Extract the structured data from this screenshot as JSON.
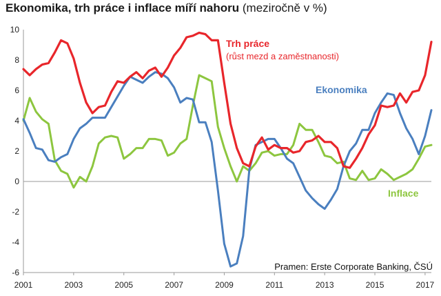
{
  "chart_data": {
    "type": "line",
    "title_bold": "Ekonomika, trh práce i inflace míří nahoru",
    "title_normal": "(meziročně v %)",
    "source": "Pramen: Erste Corporate Banking, ČSÚ",
    "x_tick_labels": [
      "2001",
      "2003",
      "2005",
      "2007",
      "2009",
      "2011",
      "2013",
      "2015",
      "2017"
    ],
    "y_tick_labels": [
      "10",
      "8",
      "6",
      "4",
      "2",
      "0",
      "-2",
      "-4",
      "-6"
    ],
    "ylim": [
      -6,
      10
    ],
    "xlim": [
      2001.0,
      2017.25
    ],
    "series": [
      {
        "name": "Trh práce",
        "name_sub": "(růst mezd a zaměstnanosti)",
        "color": "#e8262b",
        "x": [
          2001,
          2001.25,
          2001.5,
          2001.75,
          2002,
          2002.25,
          2002.5,
          2002.75,
          2003,
          2003.25,
          2003.5,
          2003.75,
          2004,
          2004.25,
          2004.5,
          2004.75,
          2005,
          2005.25,
          2005.5,
          2005.75,
          2006,
          2006.25,
          2006.5,
          2006.75,
          2007,
          2007.25,
          2007.5,
          2007.75,
          2008,
          2008.25,
          2008.5,
          2008.75,
          2009,
          2009.25,
          2009.5,
          2009.75,
          2010,
          2010.25,
          2010.5,
          2010.75,
          2011,
          2011.25,
          2011.5,
          2011.75,
          2012,
          2012.25,
          2012.5,
          2012.75,
          2013,
          2013.25,
          2013.5,
          2013.75,
          2014,
          2014.25,
          2014.5,
          2014.75,
          2015,
          2015.25,
          2015.5,
          2015.75,
          2016,
          2016.25,
          2016.5,
          2016.75,
          2017,
          2017.25
        ],
        "values": [
          7.4,
          7.0,
          7.4,
          7.7,
          7.8,
          8.5,
          9.3,
          9.1,
          8.1,
          6.5,
          5.2,
          4.5,
          4.9,
          5.0,
          5.9,
          6.6,
          6.5,
          6.9,
          7.2,
          6.8,
          7.3,
          7.5,
          6.9,
          7.5,
          8.3,
          8.8,
          9.5,
          9.6,
          9.8,
          9.7,
          9.3,
          9.3,
          6.5,
          3.8,
          2.2,
          1.2,
          1.0,
          2.3,
          2.9,
          2.1,
          2.4,
          2.2,
          2.2,
          1.9,
          2.0,
          2.6,
          2.7,
          3.0,
          2.6,
          2.6,
          2.2,
          1.0,
          0.9,
          1.5,
          2.2,
          3.1,
          3.7,
          5.0,
          4.9,
          5.0,
          5.8,
          5.2,
          5.9,
          6.0,
          7.0,
          9.2
        ]
      },
      {
        "name": "Ekonomika",
        "color": "#4a7fbf",
        "x": [
          2001,
          2001.25,
          2001.5,
          2001.75,
          2002,
          2002.25,
          2002.5,
          2002.75,
          2003,
          2003.25,
          2003.5,
          2003.75,
          2004,
          2004.25,
          2004.5,
          2004.75,
          2005,
          2005.25,
          2005.5,
          2005.75,
          2006,
          2006.25,
          2006.5,
          2006.75,
          2007,
          2007.25,
          2007.5,
          2007.75,
          2008,
          2008.25,
          2008.5,
          2008.75,
          2009,
          2009.25,
          2009.5,
          2009.75,
          2010,
          2010.25,
          2010.5,
          2010.75,
          2011,
          2011.25,
          2011.5,
          2011.75,
          2012,
          2012.25,
          2012.5,
          2012.75,
          2013,
          2013.25,
          2013.5,
          2013.75,
          2014,
          2014.25,
          2014.5,
          2014.75,
          2015,
          2015.25,
          2015.5,
          2015.75,
          2016,
          2016.25,
          2016.5,
          2016.75,
          2017,
          2017.25
        ],
        "values": [
          4.1,
          3.2,
          2.2,
          2.1,
          1.4,
          1.3,
          1.6,
          1.8,
          2.8,
          3.5,
          3.8,
          4.2,
          4.2,
          4.2,
          4.9,
          5.6,
          6.3,
          6.9,
          6.7,
          6.5,
          6.9,
          7.2,
          7.1,
          6.8,
          6.2,
          5.2,
          5.5,
          5.4,
          3.9,
          3.9,
          2.6,
          -0.6,
          -4.1,
          -5.6,
          -5.4,
          -3.6,
          0.8,
          2.4,
          2.6,
          2.8,
          2.8,
          2.2,
          1.5,
          1.2,
          0.3,
          -0.6,
          -1.1,
          -1.5,
          -1.8,
          -1.2,
          -0.5,
          1.0,
          2.0,
          2.5,
          3.4,
          3.4,
          4.5,
          5.2,
          5.8,
          5.7,
          4.5,
          3.5,
          2.8,
          1.8,
          3.0,
          4.7
        ]
      },
      {
        "name": "Inflace",
        "color": "#8dc63f",
        "x": [
          2001,
          2001.25,
          2001.5,
          2001.75,
          2002,
          2002.25,
          2002.5,
          2002.75,
          2003,
          2003.25,
          2003.5,
          2003.75,
          2004,
          2004.25,
          2004.5,
          2004.75,
          2005,
          2005.25,
          2005.5,
          2005.75,
          2006,
          2006.25,
          2006.5,
          2006.75,
          2007,
          2007.25,
          2007.5,
          2007.75,
          2008,
          2008.25,
          2008.5,
          2008.75,
          2009,
          2009.25,
          2009.5,
          2009.75,
          2010,
          2010.25,
          2010.5,
          2010.75,
          2011,
          2011.25,
          2011.5,
          2011.75,
          2012,
          2012.25,
          2012.5,
          2012.75,
          2013,
          2013.25,
          2013.5,
          2013.75,
          2014,
          2014.25,
          2014.5,
          2014.75,
          2015,
          2015.25,
          2015.5,
          2015.75,
          2016,
          2016.25,
          2016.5,
          2016.75,
          2017,
          2017.25
        ],
        "values": [
          4.0,
          5.5,
          4.6,
          4.1,
          3.8,
          1.4,
          0.7,
          0.5,
          -0.4,
          0.3,
          0.0,
          1.0,
          2.5,
          2.9,
          3.0,
          2.9,
          1.5,
          1.8,
          2.2,
          2.2,
          2.8,
          2.8,
          2.7,
          1.7,
          1.9,
          2.5,
          2.8,
          5.0,
          7.0,
          6.8,
          6.6,
          3.6,
          2.2,
          1.0,
          0.0,
          1.0,
          0.7,
          1.2,
          1.9,
          2.0,
          1.7,
          1.8,
          1.8,
          2.4,
          3.8,
          3.4,
          3.4,
          2.6,
          1.7,
          1.6,
          1.2,
          1.3,
          0.2,
          0.1,
          0.7,
          0.1,
          0.2,
          0.8,
          0.5,
          0.1,
          0.3,
          0.5,
          0.8,
          1.5,
          2.3,
          2.4
        ]
      }
    ]
  }
}
